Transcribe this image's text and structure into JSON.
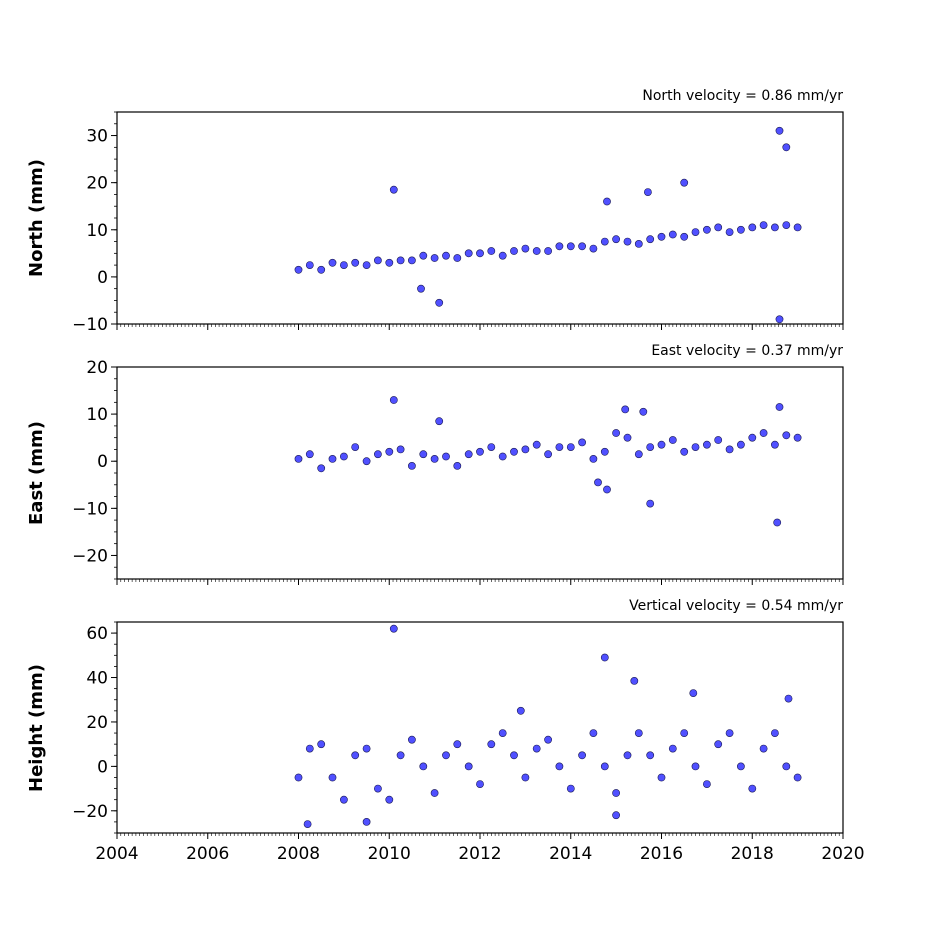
{
  "chart_data": [
    {
      "type": "scatter",
      "title": "North velocity = 0.86 mm/yr",
      "ylabel": "North (mm)",
      "xlim": [
        2004,
        2020
      ],
      "ylim": [
        -10,
        35
      ],
      "yticks": [
        -10,
        0,
        10,
        20,
        30
      ],
      "marker_color": "#5050ff",
      "series": [
        {
          "x": [
            2008.0,
            2008.25,
            2008.5,
            2008.75,
            2009.0,
            2009.25,
            2009.5,
            2009.75,
            2010.0,
            2010.25,
            2010.5,
            2010.75,
            2011.0,
            2011.25,
            2011.5,
            2011.75,
            2012.0,
            2012.25,
            2012.5,
            2012.75,
            2013.0,
            2013.25,
            2013.5,
            2013.75,
            2014.0,
            2014.25,
            2014.5,
            2014.75,
            2015.0,
            2015.25,
            2015.5,
            2015.75,
            2016.0,
            2016.25,
            2016.5,
            2016.75,
            2017.0,
            2017.25,
            2017.5,
            2017.75,
            2018.0,
            2018.25,
            2018.5,
            2018.75,
            2019.0,
            2010.1,
            2011.1,
            2014.8,
            2015.7,
            2016.5,
            2018.6,
            2018.75,
            2018.6,
            2010.7
          ],
          "y": [
            1.5,
            2.5,
            1.5,
            3.0,
            2.5,
            3.0,
            2.5,
            3.5,
            3.0,
            3.5,
            3.5,
            4.5,
            4.0,
            4.5,
            4.0,
            5.0,
            5.0,
            5.5,
            4.5,
            5.5,
            6.0,
            5.5,
            5.5,
            6.5,
            6.5,
            6.5,
            6.0,
            7.5,
            8.0,
            7.5,
            7.0,
            8.0,
            8.5,
            9.0,
            8.5,
            9.5,
            10.0,
            10.5,
            9.5,
            10.0,
            10.5,
            11.0,
            10.5,
            11.0,
            10.5,
            18.5,
            -5.5,
            16.0,
            18.0,
            20.0,
            31.0,
            27.5,
            -9.0,
            -2.5
          ]
        }
      ]
    },
    {
      "type": "scatter",
      "title": "East velocity = 0.37 mm/yr",
      "ylabel": "East (mm)",
      "xlim": [
        2004,
        2020
      ],
      "ylim": [
        -25,
        20
      ],
      "yticks": [
        -20,
        -10,
        0,
        10,
        20
      ],
      "marker_color": "#5050ff",
      "series": [
        {
          "x": [
            2008.0,
            2008.25,
            2008.5,
            2008.75,
            2009.0,
            2009.25,
            2009.5,
            2009.75,
            2010.0,
            2010.25,
            2010.5,
            2010.75,
            2011.0,
            2011.25,
            2011.5,
            2011.75,
            2012.0,
            2012.25,
            2012.5,
            2012.75,
            2013.0,
            2013.25,
            2013.5,
            2013.75,
            2014.0,
            2014.25,
            2014.5,
            2014.75,
            2015.0,
            2015.25,
            2015.5,
            2015.75,
            2016.0,
            2016.25,
            2016.5,
            2016.75,
            2017.0,
            2017.25,
            2017.5,
            2017.75,
            2018.0,
            2018.25,
            2018.5,
            2018.75,
            2019.0,
            2010.1,
            2011.1,
            2014.8,
            2015.6,
            2015.75,
            2018.55,
            2018.6,
            2015.2,
            2014.6
          ],
          "y": [
            0.5,
            1.5,
            -1.5,
            0.5,
            1.0,
            3.0,
            0.0,
            1.5,
            2.0,
            2.5,
            -1.0,
            1.5,
            0.5,
            1.0,
            -1.0,
            1.5,
            2.0,
            3.0,
            1.0,
            2.0,
            2.5,
            3.5,
            1.5,
            3.0,
            3.0,
            4.0,
            0.5,
            2.0,
            6.0,
            5.0,
            1.5,
            3.0,
            3.5,
            4.5,
            2.0,
            3.0,
            3.5,
            4.5,
            2.5,
            3.5,
            5.0,
            6.0,
            3.5,
            5.5,
            5.0,
            13.0,
            8.5,
            -6.0,
            10.5,
            -9.0,
            -13.0,
            11.5,
            11.0,
            -4.5
          ]
        }
      ]
    },
    {
      "type": "scatter",
      "title": "Vertical velocity = 0.54 mm/yr",
      "ylabel": "Height (mm)",
      "xlim": [
        2004,
        2020
      ],
      "ylim": [
        -30,
        65
      ],
      "yticks": [
        -20,
        0,
        20,
        40,
        60
      ],
      "xticks": [
        2004,
        2006,
        2008,
        2010,
        2012,
        2014,
        2016,
        2018,
        2020
      ],
      "marker_color": "#5050ff",
      "series": [
        {
          "x": [
            2008.0,
            2008.25,
            2008.5,
            2008.75,
            2009.0,
            2009.25,
            2009.5,
            2009.75,
            2010.0,
            2010.25,
            2010.5,
            2010.75,
            2011.0,
            2011.25,
            2011.5,
            2011.75,
            2012.0,
            2012.25,
            2012.5,
            2012.75,
            2013.0,
            2013.25,
            2013.5,
            2013.75,
            2014.0,
            2014.25,
            2014.5,
            2014.75,
            2015.0,
            2015.25,
            2015.5,
            2015.75,
            2016.0,
            2016.25,
            2016.5,
            2016.75,
            2017.0,
            2017.25,
            2017.5,
            2017.75,
            2018.0,
            2018.25,
            2018.5,
            2018.75,
            2019.0,
            2010.1,
            2014.75,
            2015.4,
            2016.7,
            2008.2,
            2009.5,
            2018.8,
            2015.0,
            2012.9
          ],
          "y": [
            -5.0,
            8.0,
            10.0,
            -5.0,
            -15.0,
            5.0,
            8.0,
            -10.0,
            -15.0,
            5.0,
            12.0,
            0.0,
            -12.0,
            5.0,
            10.0,
            0.0,
            -8.0,
            10.0,
            15.0,
            5.0,
            -5.0,
            8.0,
            12.0,
            0.0,
            -10.0,
            5.0,
            15.0,
            0.0,
            -12.0,
            5.0,
            15.0,
            5.0,
            -5.0,
            8.0,
            15.0,
            0.0,
            -8.0,
            10.0,
            15.0,
            0.0,
            -10.0,
            8.0,
            15.0,
            0.0,
            -5.0,
            62.0,
            49.0,
            38.5,
            33.0,
            -26.0,
            -25.0,
            30.5,
            -22.0,
            25.0
          ]
        }
      ]
    }
  ]
}
